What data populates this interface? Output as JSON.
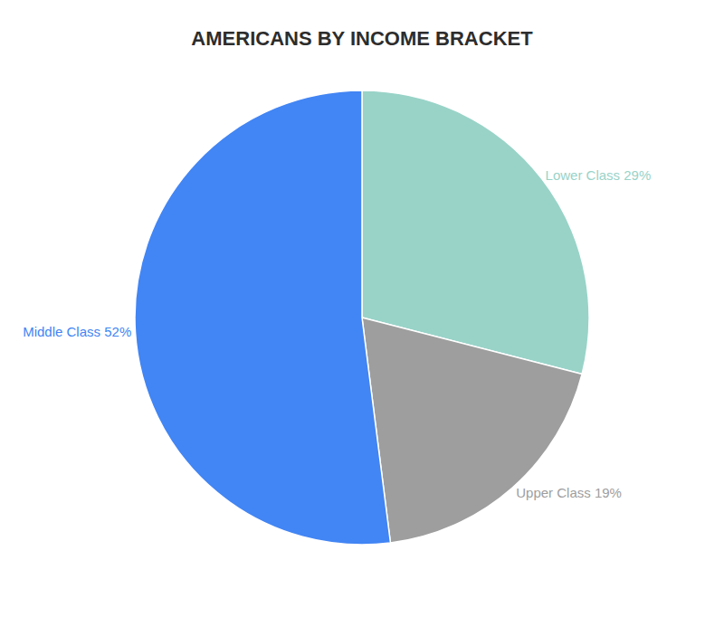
{
  "chart_data": {
    "type": "pie",
    "title": "AMERICANS BY INCOME BRACKET",
    "categories": [
      "Lower Class 29%",
      "Upper Class 19%",
      "Middle Class 52%"
    ],
    "values": [
      29,
      19,
      52
    ],
    "colors": [
      "#99d3c8",
      "#9e9e9e",
      "#4285f4"
    ]
  }
}
